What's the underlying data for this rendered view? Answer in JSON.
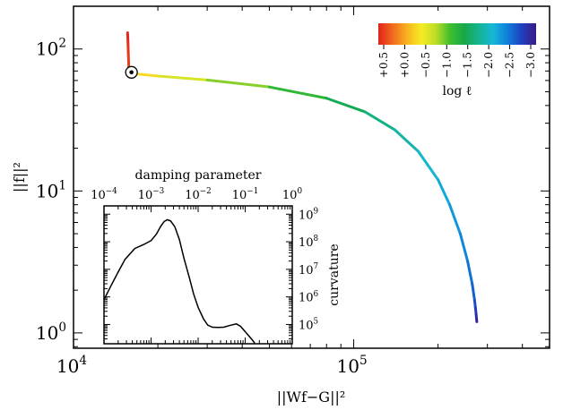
{
  "chart_data": [
    {
      "type": "line",
      "title": "",
      "xlabel": "||Wf−G||²",
      "ylabel": "||f||²",
      "xscale": "log",
      "yscale": "log",
      "xlim": [
        10000,
        500000
      ],
      "ylim": [
        0.78,
        200
      ],
      "x_ticks": [
        {
          "value": 10000,
          "mantissa": "10",
          "exp": "4"
        },
        {
          "value": 100000,
          "mantissa": "10",
          "exp": "5"
        }
      ],
      "y_ticks": [
        {
          "value": 1,
          "mantissa": "10",
          "exp": "0"
        },
        {
          "value": 10,
          "mantissa": "10",
          "exp": "1"
        },
        {
          "value": 100,
          "mantissa": "10",
          "exp": "2"
        }
      ],
      "series": [
        {
          "x": [
            15600,
            15650,
            15700,
            15750,
            15850,
            16100,
            16400,
            20000,
            30000,
            50000,
            80000,
            110000,
            140000,
            170000,
            200000,
            220000,
            240000,
            255000,
            265000,
            270000,
            272000,
            273500,
            274500,
            275000
          ],
          "y": [
            130,
            110,
            90,
            75,
            70,
            68.5,
            67,
            64.5,
            60.5,
            54,
            45,
            36,
            27,
            19,
            12,
            8,
            5,
            3.2,
            2.2,
            1.7,
            1.5,
            1.35,
            1.25,
            1.2
          ],
          "log_l": [
            -3.1,
            -3.05,
            -3.0,
            -2.95,
            -2.9,
            -2.5,
            -2.35,
            -2.1,
            -1.8,
            -1.5,
            -1.2,
            -0.95,
            -0.75,
            -0.6,
            -0.45,
            -0.35,
            -0.25,
            -0.15,
            -0.05,
            0.05,
            0.15,
            0.25,
            0.35,
            0.45
          ]
        }
      ],
      "colormap": [
        "#3b1b86",
        "#1f3fbf",
        "#0e7fd9",
        "#16b7d8",
        "#14b48f",
        "#17a84a",
        "#3fbf2c",
        "#bddd28",
        "#f6ec22",
        "#f9b320",
        "#f06a1e",
        "#e0231b"
      ],
      "colorbar": {
        "label": "log ℓ",
        "ticks": [
          "+0.5",
          "+0.0",
          "−0.5",
          "−1.0",
          "−1.5",
          "−2.0",
          "−2.5",
          "−3.0"
        ],
        "range": [
          0.5,
          -3.1
        ],
        "location": "top-right"
      },
      "marker": {
        "x": 16100,
        "y": 68.5,
        "symbol": "circled-dot"
      }
    },
    {
      "type": "line",
      "title": "",
      "xlabel": "damping parameter",
      "ylabel": "curvature",
      "xscale": "log",
      "yscale": "log",
      "xlim": [
        0.0001,
        1
      ],
      "ylim": [
        20000,
        2000000000
      ],
      "x_ticks": [
        {
          "value": 0.0001,
          "mantissa": "10",
          "exp": "−4"
        },
        {
          "value": 0.001,
          "mantissa": "10",
          "exp": "−3"
        },
        {
          "value": 0.01,
          "mantissa": "10",
          "exp": "−2"
        },
        {
          "value": 0.1,
          "mantissa": "10",
          "exp": "−1"
        },
        {
          "value": 1,
          "mantissa": "10",
          "exp": "0"
        }
      ],
      "y_ticks": [
        {
          "value": 100000,
          "mantissa": "10",
          "exp": "5"
        },
        {
          "value": 1000000,
          "mantissa": "10",
          "exp": "6"
        },
        {
          "value": 10000000,
          "mantissa": "10",
          "exp": "7"
        },
        {
          "value": 100000000,
          "mantissa": "10",
          "exp": "8"
        },
        {
          "value": 1000000000,
          "mantissa": "10",
          "exp": "9"
        }
      ],
      "series": [
        {
          "x": [
            0.0001,
            0.00014,
            0.0002,
            0.00028,
            0.00045,
            0.0007,
            0.001,
            0.0013,
            0.0016,
            0.0019,
            0.0022,
            0.0026,
            0.0032,
            0.004,
            0.005,
            0.0065,
            0.008,
            0.01,
            0.013,
            0.016,
            0.02,
            0.026,
            0.035,
            0.05,
            0.065,
            0.08,
            0.1,
            0.12,
            0.14,
            0.16
          ],
          "y": [
            800000,
            2500000,
            8000000,
            23000000,
            57000000,
            80000000,
            110000000,
            190000000,
            360000000,
            540000000,
            630000000,
            570000000,
            350000000,
            120000000,
            25000000,
            5000000,
            1300000,
            420000,
            160000,
            95000,
            80000,
            78000,
            80000,
            95000,
            105000,
            85000,
            55000,
            38000,
            28000,
            21000
          ]
        }
      ]
    }
  ]
}
